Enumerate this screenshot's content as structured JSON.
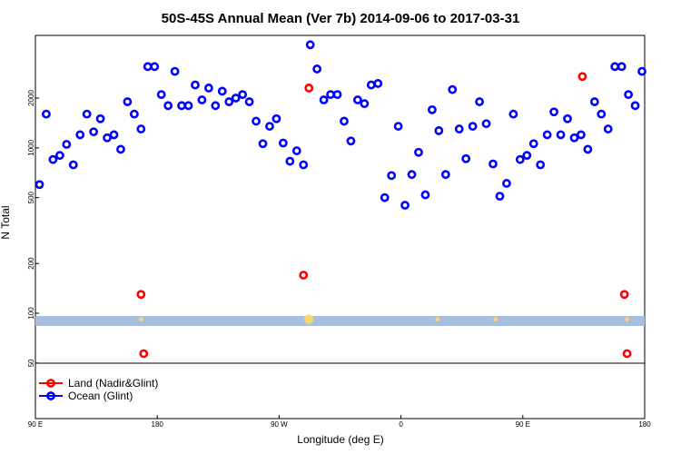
{
  "chart_data": {
    "type": "scatter",
    "title": "50S-45S Annual Mean (Ver 7b)   2014-09-06 to 2017-03-31",
    "xlabel": "Longitude (deg E)",
    "ylabel": "N Total",
    "x_ticks": [
      {
        "x": 90,
        "label": "90 E"
      },
      {
        "x": 180,
        "label": "180"
      },
      {
        "x": 270,
        "label": "90 W"
      },
      {
        "x": 360,
        "label": "0"
      },
      {
        "x": 450,
        "label": "90 E"
      },
      {
        "x": 540,
        "label": "180"
      }
    ],
    "y_ticks": [
      50,
      100,
      200,
      500,
      1000,
      2000
    ],
    "xlim": [
      90,
      540
    ],
    "ylim_log": [
      50,
      5000
    ],
    "log_scale_y": true,
    "series": [
      {
        "name": "Land (Nadir&Glint)",
        "color": "#ff0000",
        "x": [
          168,
          170,
          288,
          292,
          494,
          525,
          527
        ],
        "y": [
          130,
          57,
          170,
          2300,
          2700,
          130,
          57
        ]
      },
      {
        "name": "Ocean (Glint)",
        "color": "#0000ff",
        "x": [
          93,
          98,
          103,
          108,
          113,
          118,
          123,
          128,
          133,
          138,
          143,
          148,
          153,
          158,
          163,
          168,
          173,
          178,
          183,
          188,
          193,
          198,
          203,
          208,
          213,
          218,
          223,
          228,
          233,
          238,
          243,
          248,
          253,
          258,
          263,
          268,
          273,
          278,
          283,
          288,
          293,
          298,
          303,
          308,
          313,
          318,
          323,
          328,
          333,
          338,
          343,
          348,
          353,
          358,
          363,
          368,
          373,
          378,
          383,
          388,
          393,
          398,
          403,
          408,
          413,
          418,
          423,
          428,
          433,
          438,
          443,
          448,
          453,
          458,
          463,
          468,
          473,
          478,
          483,
          488,
          493,
          498,
          503,
          508,
          513,
          518,
          523,
          528,
          533,
          538
        ],
        "y": [
          600,
          1600,
          850,
          900,
          1050,
          790,
          1200,
          1600,
          1250,
          1500,
          1150,
          1200,
          980,
          1900,
          1600,
          1300,
          3100,
          3100,
          2100,
          1800,
          2900,
          1800,
          1800,
          2400,
          1950,
          2300,
          1800,
          2200,
          1900,
          2000,
          2100,
          1900,
          1450,
          1060,
          1350,
          1500,
          1070,
          830,
          960,
          790,
          4200,
          3000,
          1950,
          2100,
          2100,
          1450,
          1100,
          1950,
          1850,
          2400,
          2450,
          500,
          680,
          1350,
          450,
          690,
          940,
          520,
          1700,
          1270,
          690,
          2250,
          1300,
          860,
          1350,
          1900,
          1400,
          800,
          510,
          610,
          1600,
          850,
          900,
          1060,
          790,
          1200,
          1650,
          1200,
          1500,
          1150,
          1200,
          980,
          1900,
          1600,
          1300,
          3100,
          3100,
          2100,
          1800,
          2900
        ]
      }
    ],
    "markers": {
      "band_y": 92,
      "yellow_x": [
        168,
        292,
        292,
        292,
        387,
        430,
        527
      ]
    },
    "legend": {
      "placement": "bottom-left",
      "items": [
        {
          "label": "Land (Nadir&Glint)",
          "color": "#ff0000"
        },
        {
          "label": "Ocean (Glint)",
          "color": "#0000ff"
        }
      ]
    },
    "grid": false
  }
}
